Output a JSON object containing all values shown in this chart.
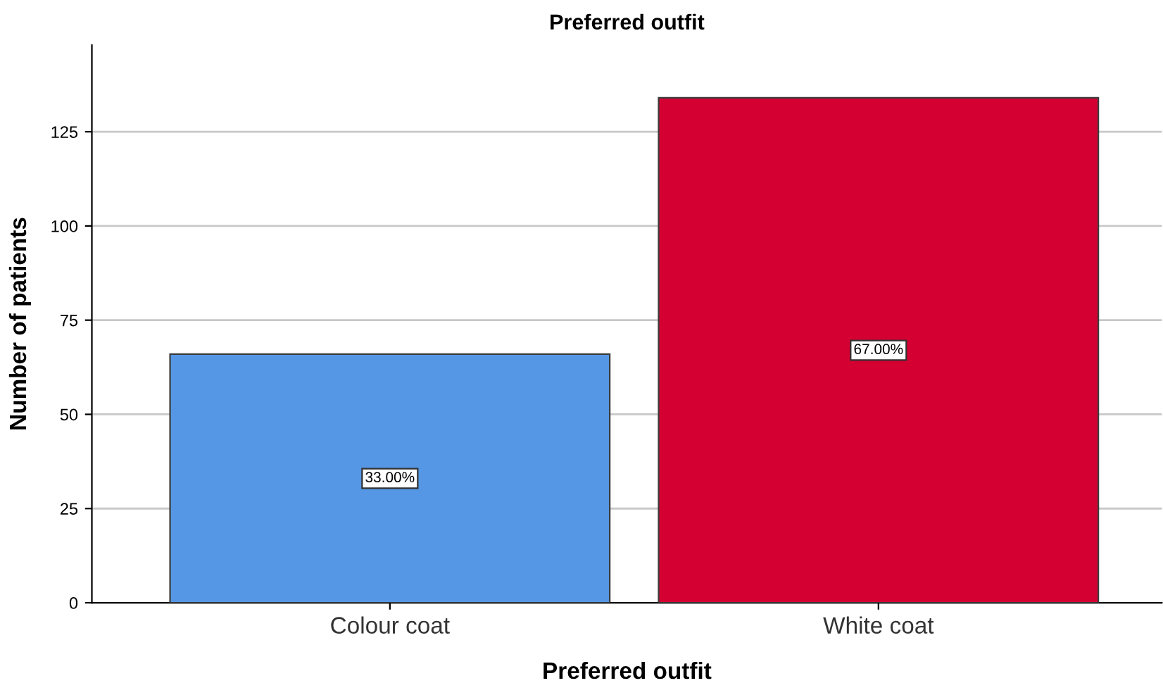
{
  "chart_data": {
    "type": "bar",
    "title": "Preferred outfit",
    "xlabel": "Preferred outfit",
    "ylabel": "Number of patients",
    "categories": [
      "Colour coat",
      "White coat"
    ],
    "values": [
      66,
      134
    ],
    "colors": [
      "#5597e5",
      "#d50032"
    ],
    "annotations": [
      {
        "text": "33.00%",
        "x": "Colour coat",
        "y": 33
      },
      {
        "text": "67.00%",
        "x": "White coat",
        "y": 67
      }
    ],
    "ylim": [
      0,
      148
    ],
    "yticks": [
      0,
      25,
      50,
      75,
      100,
      125
    ],
    "grid": "y"
  }
}
